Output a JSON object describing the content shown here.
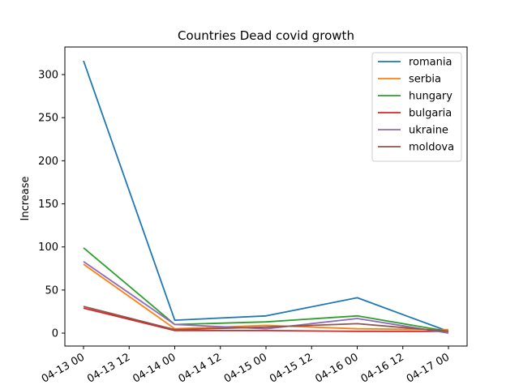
{
  "chart_data": {
    "type": "line",
    "title": "Countries Dead covid growth",
    "xlabel": "",
    "ylabel": "Increase",
    "x": [
      "04-13 00",
      "04-14 00",
      "04-15 00",
      "04-16 00",
      "04-17 00"
    ],
    "x_ticks": [
      "04-13 00",
      "04-13 12",
      "04-14 00",
      "04-14 12",
      "04-15 00",
      "04-15 12",
      "04-16 00",
      "04-16 12",
      "04-17 00"
    ],
    "y_ticks": [
      0,
      50,
      100,
      150,
      200,
      250,
      300
    ],
    "ylim": [
      -15,
      332
    ],
    "grid": false,
    "legend_position": "top-right",
    "series": [
      {
        "name": "romania",
        "color": "#1f77b4",
        "values": [
          316,
          15,
          20,
          41,
          2
        ]
      },
      {
        "name": "serbia",
        "color": "#ff7f0e",
        "values": [
          80,
          5,
          9,
          5,
          4
        ]
      },
      {
        "name": "hungary",
        "color": "#2ca02c",
        "values": [
          99,
          10,
          13,
          20,
          2
        ]
      },
      {
        "name": "bulgaria",
        "color": "#d62728",
        "values": [
          29,
          3,
          3,
          2,
          2
        ]
      },
      {
        "name": "ukraine",
        "color": "#9467bd",
        "values": [
          83,
          10,
          5,
          17,
          0
        ]
      },
      {
        "name": "moldova",
        "color": "#8c564b",
        "values": [
          31,
          4,
          7,
          11,
          2
        ]
      }
    ]
  }
}
